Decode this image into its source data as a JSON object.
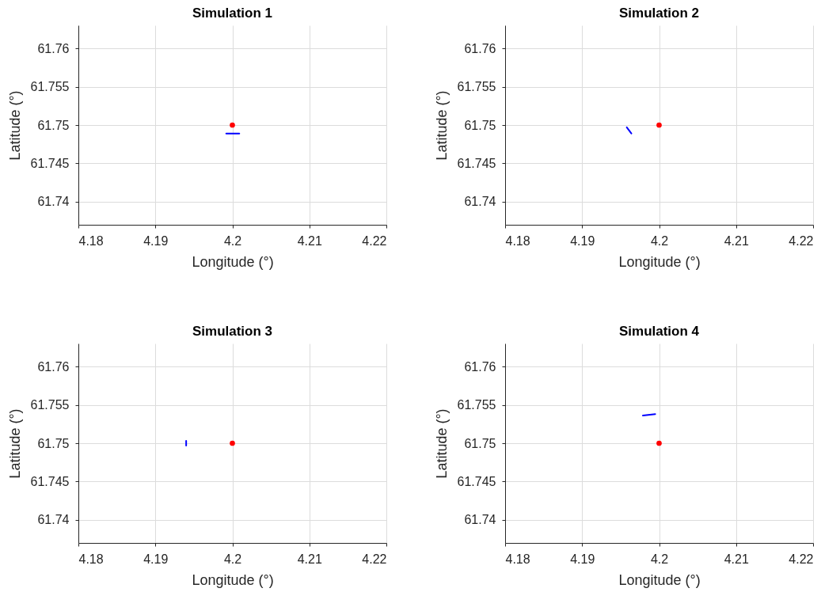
{
  "chart_data": [
    {
      "type": "scatter",
      "title": "Simulation 1",
      "xlabel": "Longitude (°)",
      "ylabel": "Latitude (°)",
      "xlim": [
        4.18,
        4.22
      ],
      "ylim": [
        61.737,
        61.763
      ],
      "xticks": [
        4.18,
        4.19,
        4.2,
        4.21,
        4.22
      ],
      "yticks": [
        61.74,
        61.745,
        61.75,
        61.755,
        61.76
      ],
      "grid": true,
      "series": [
        {
          "type": "line",
          "color": "#0000ff",
          "x": [
            4.1992,
            4.2009
          ],
          "values": [
            61.7489,
            61.7489
          ]
        },
        {
          "color": "#ff0000",
          "marker": "circle",
          "x": [
            4.2
          ],
          "values": [
            61.75
          ]
        }
      ]
    },
    {
      "type": "scatter",
      "title": "Simulation 2",
      "xlabel": "Longitude (°)",
      "ylabel": "Latitude (°)",
      "xlim": [
        4.18,
        4.22
      ],
      "ylim": [
        61.737,
        61.763
      ],
      "xticks": [
        4.18,
        4.19,
        4.2,
        4.21,
        4.22
      ],
      "yticks": [
        61.74,
        61.745,
        61.75,
        61.755,
        61.76
      ],
      "grid": true,
      "series": [
        {
          "type": "line",
          "color": "#0000ff",
          "x": [
            4.1958,
            4.1964
          ],
          "values": [
            61.7497,
            61.7489
          ]
        },
        {
          "color": "#ff0000",
          "marker": "circle",
          "x": [
            4.2
          ],
          "values": [
            61.75
          ]
        }
      ]
    },
    {
      "type": "scatter",
      "title": "Simulation 3",
      "xlabel": "Longitude (°)",
      "ylabel": "Latitude (°)",
      "xlim": [
        4.18,
        4.22
      ],
      "ylim": [
        61.737,
        61.763
      ],
      "xticks": [
        4.18,
        4.19,
        4.2,
        4.21,
        4.22
      ],
      "yticks": [
        61.74,
        61.745,
        61.75,
        61.755,
        61.76
      ],
      "grid": true,
      "series": [
        {
          "type": "line",
          "color": "#0000ff",
          "x": [
            4.194,
            4.194
          ],
          "values": [
            61.7503,
            61.7497
          ]
        },
        {
          "color": "#ff0000",
          "marker": "circle",
          "x": [
            4.2
          ],
          "values": [
            61.75
          ]
        }
      ]
    },
    {
      "type": "scatter",
      "title": "Simulation 4",
      "xlabel": "Longitude (°)",
      "ylabel": "Latitude (°)",
      "xlim": [
        4.18,
        4.22
      ],
      "ylim": [
        61.737,
        61.763
      ],
      "xticks": [
        4.18,
        4.19,
        4.2,
        4.21,
        4.22
      ],
      "yticks": [
        61.74,
        61.745,
        61.75,
        61.755,
        61.76
      ],
      "grid": true,
      "series": [
        {
          "type": "line",
          "color": "#0000ff",
          "x": [
            4.1979,
            4.1995
          ],
          "values": [
            61.7536,
            61.7538
          ]
        },
        {
          "color": "#ff0000",
          "marker": "circle",
          "x": [
            4.2
          ],
          "values": [
            61.75
          ]
        }
      ]
    }
  ]
}
